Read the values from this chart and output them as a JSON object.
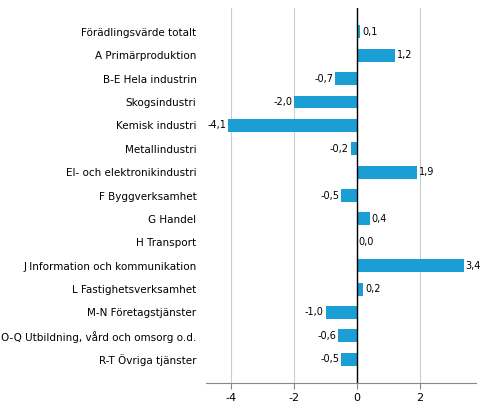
{
  "categories": [
    "R-T Övriga tjänster",
    "O-Q Utbildning, vård och omsorg o.d.",
    "M-N Företagstjänster",
    "L Fastighetsverksamhet",
    "J Information och kommunikation",
    "H Transport",
    "G Handel",
    "F Byggverksamhet",
    "El- och elektronikindustri",
    "Metallindustri",
    "Kemisk industri",
    "Skogsindustri",
    "B-E Hela industrin",
    "A Primärproduktion",
    "Förädlingsvärde totalt"
  ],
  "values": [
    -0.5,
    -0.6,
    -1.0,
    0.2,
    3.4,
    0.0,
    0.4,
    -0.5,
    1.9,
    -0.2,
    -4.1,
    -2.0,
    -0.7,
    1.2,
    0.1
  ],
  "bar_color": "#1a9ed4",
  "xlim": [
    -4.8,
    3.8
  ],
  "xticks": [
    -4,
    -2,
    0,
    2
  ],
  "value_fontsize": 7.0,
  "label_fontsize": 7.5,
  "tick_fontsize": 8.0,
  "background_color": "#ffffff",
  "grid_color": "#cccccc"
}
